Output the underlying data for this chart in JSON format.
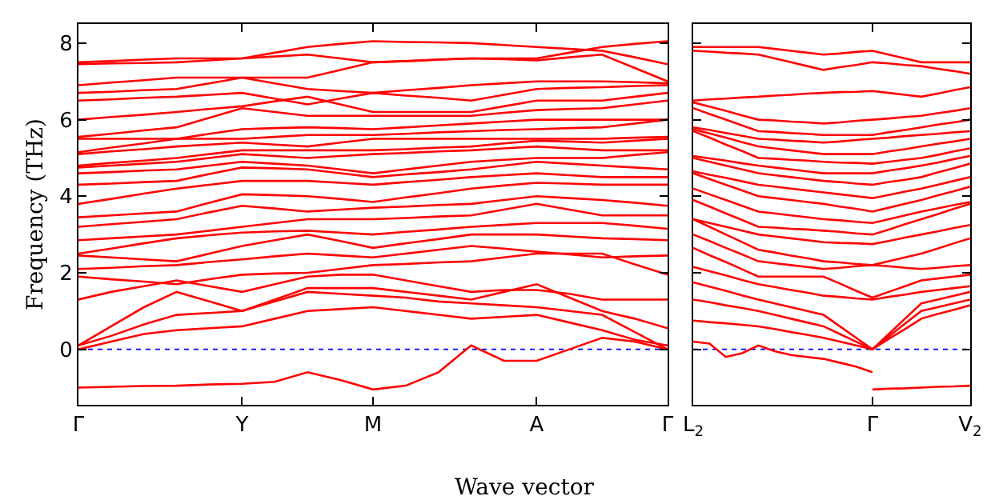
{
  "chart_data": [
    {
      "type": "line",
      "ylabel": "Frequency (THz)",
      "xlabel": "Wave vector",
      "categories": [
        "Γ",
        null,
        null,
        null,
        null,
        "Y",
        null,
        null,
        null,
        "M",
        null,
        null,
        null,
        null,
        "A",
        null,
        null,
        null,
        "Γ"
      ],
      "ylim": [
        -1.45,
        8.5
      ],
      "yticks": [
        0,
        2,
        4,
        6,
        8
      ],
      "grid": false,
      "marker": "none",
      "line_style": "solid",
      "ref_lines": [
        {
          "axis": "y",
          "value": 0,
          "color": "#0000ff",
          "line_style": "dotted"
        }
      ],
      "series": [
        {
          "color": "#ff0000",
          "values": [
            -1.0,
            -0.98,
            -0.96,
            -0.95,
            -0.92,
            -0.9,
            -0.85,
            -0.6,
            -0.8,
            -1.05,
            -0.95,
            -0.6,
            0.1,
            -0.3,
            -0.3,
            0.0,
            0.3,
            0.2,
            0.0
          ]
        },
        {
          "color": "#ff0000",
          "values": [
            0,
            0.2,
            0.4,
            0.5,
            0.55,
            0.6,
            0.8,
            1.0,
            1.05,
            1.1,
            1.0,
            0.9,
            0.8,
            0.85,
            0.9,
            0.7,
            0.5,
            0.25,
            0.1
          ]
        },
        {
          "color": "#ff0000",
          "values": [
            0.1,
            0.35,
            0.65,
            0.9,
            0.95,
            1.0,
            1.25,
            1.5,
            1.45,
            1.4,
            1.35,
            1.25,
            1.2,
            1.15,
            1.1,
            1.0,
            0.9,
            0.45,
            0
          ]
        },
        {
          "color": "#ff0000",
          "values": [
            0.1,
            0.6,
            1.1,
            1.5,
            1.25,
            1.0,
            1.3,
            1.6,
            1.6,
            1.6,
            1.5,
            1.4,
            1.3,
            1.5,
            1.7,
            1.35,
            1.0,
            0.8,
            0.55
          ]
        },
        {
          "color": "#ff0000",
          "values": [
            1.3,
            1.5,
            1.65,
            1.8,
            1.65,
            1.5,
            1.7,
            1.9,
            1.95,
            1.95,
            1.8,
            1.65,
            1.5,
            1.55,
            1.55,
            1.45,
            1.3,
            1.3,
            1.3
          ]
        },
        {
          "color": "#ff0000",
          "values": [
            1.9,
            1.83,
            1.77,
            1.7,
            1.83,
            1.95,
            1.98,
            2.0,
            2.1,
            2.2,
            2.23,
            2.27,
            2.3,
            2.4,
            2.5,
            2.5,
            2.5,
            2.22,
            1.95
          ]
        },
        {
          "color": "#ff0000",
          "values": [
            2.1,
            2.13,
            2.17,
            2.2,
            2.28,
            2.35,
            2.43,
            2.5,
            2.45,
            2.4,
            2.5,
            2.6,
            2.7,
            2.63,
            2.55,
            2.48,
            2.4,
            2.43,
            2.45
          ]
        },
        {
          "color": "#ff0000",
          "values": [
            2.45,
            2.4,
            2.35,
            2.3,
            2.5,
            2.7,
            2.85,
            3.0,
            2.83,
            2.65,
            2.77,
            2.88,
            3.0,
            3.0,
            3.0,
            2.95,
            2.9,
            2.88,
            2.85
          ]
        },
        {
          "color": "#ff0000",
          "values": [
            2.5,
            2.63,
            2.77,
            2.9,
            2.98,
            3.05,
            3.08,
            3.1,
            3.05,
            3.0,
            3.07,
            3.13,
            3.2,
            3.25,
            3.3,
            3.3,
            3.3,
            3.23,
            3.15
          ]
        },
        {
          "color": "#ff0000",
          "values": [
            2.85,
            2.9,
            2.95,
            3.0,
            3.1,
            3.2,
            3.3,
            3.4,
            3.4,
            3.4,
            3.43,
            3.47,
            3.5,
            3.65,
            3.8,
            3.65,
            3.5,
            3.5,
            3.5
          ]
        },
        {
          "color": "#ff0000",
          "values": [
            3.2,
            3.27,
            3.33,
            3.4,
            3.58,
            3.75,
            3.68,
            3.6,
            3.65,
            3.7,
            3.73,
            3.77,
            3.8,
            3.9,
            4.0,
            3.95,
            3.9,
            3.83,
            3.75
          ]
        },
        {
          "color": "#ff0000",
          "values": [
            3.45,
            3.5,
            3.55,
            3.6,
            3.83,
            4.05,
            4.03,
            4.0,
            3.93,
            3.85,
            3.97,
            4.08,
            4.2,
            4.28,
            4.35,
            4.33,
            4.3,
            4.3,
            4.3
          ]
        },
        {
          "color": "#ff0000",
          "values": [
            3.8,
            3.93,
            4.07,
            4.2,
            4.3,
            4.4,
            4.4,
            4.4,
            4.35,
            4.3,
            4.37,
            4.43,
            4.5,
            4.55,
            4.6,
            4.55,
            4.5,
            4.5,
            4.5
          ]
        },
        {
          "color": "#ff0000",
          "values": [
            4.3,
            4.33,
            4.37,
            4.4,
            4.58,
            4.75,
            4.73,
            4.7,
            4.6,
            4.5,
            4.57,
            4.63,
            4.7,
            4.8,
            4.9,
            4.85,
            4.8,
            4.75,
            4.7
          ]
        },
        {
          "color": "#ff0000",
          "values": [
            4.6,
            4.63,
            4.67,
            4.7,
            4.8,
            4.9,
            4.85,
            4.8,
            4.7,
            4.6,
            4.7,
            4.8,
            4.9,
            4.95,
            5.0,
            5.0,
            5.0,
            5.08,
            5.15
          ]
        },
        {
          "color": "#ff0000",
          "values": [
            4.75,
            4.8,
            4.85,
            4.9,
            5.0,
            5.1,
            5.05,
            5.0,
            5.05,
            5.1,
            5.13,
            5.17,
            5.2,
            5.25,
            5.3,
            5.25,
            5.2,
            5.2,
            5.2
          ]
        },
        {
          "color": "#ff0000",
          "values": [
            4.8,
            4.87,
            4.93,
            5.0,
            5.1,
            5.2,
            5.2,
            5.2,
            5.2,
            5.2,
            5.23,
            5.27,
            5.3,
            5.38,
            5.45,
            5.43,
            5.4,
            5.45,
            5.5
          ]
        },
        {
          "color": "#ff0000",
          "values": [
            5.1,
            5.17,
            5.23,
            5.3,
            5.35,
            5.4,
            5.35,
            5.3,
            5.4,
            5.5,
            5.5,
            5.5,
            5.5,
            5.5,
            5.5,
            5.5,
            5.5,
            5.53,
            5.55
          ]
        },
        {
          "color": "#ff0000",
          "values": [
            5.15,
            5.27,
            5.38,
            5.5,
            5.5,
            5.5,
            5.55,
            5.6,
            5.6,
            5.6,
            5.63,
            5.67,
            5.7,
            5.73,
            5.75,
            5.78,
            5.8,
            5.9,
            6.0
          ]
        },
        {
          "color": "#ff0000",
          "values": [
            5.5,
            5.5,
            5.5,
            5.5,
            5.63,
            5.75,
            5.78,
            5.8,
            5.78,
            5.75,
            5.8,
            5.85,
            5.9,
            5.95,
            6.0,
            6.0,
            6.0,
            6.0,
            6.0
          ]
        },
        {
          "color": "#ff0000",
          "values": [
            5.55,
            5.63,
            5.72,
            5.8,
            6.05,
            6.3,
            6.2,
            6.1,
            6.1,
            6.1,
            6.1,
            6.1,
            6.1,
            6.18,
            6.25,
            6.28,
            6.3,
            6.4,
            6.5
          ]
        },
        {
          "color": "#ff0000",
          "values": [
            6.0,
            6.07,
            6.13,
            6.2,
            6.28,
            6.35,
            6.48,
            6.6,
            6.4,
            6.2,
            6.2,
            6.2,
            6.2,
            6.35,
            6.5,
            6.5,
            6.5,
            6.6,
            6.7
          ]
        },
        {
          "color": "#ff0000",
          "values": [
            6.5,
            6.53,
            6.57,
            6.6,
            6.65,
            6.7,
            6.55,
            6.4,
            6.55,
            6.7,
            6.63,
            6.57,
            6.5,
            6.65,
            6.8,
            6.83,
            6.85,
            6.88,
            6.9
          ]
        },
        {
          "color": "#ff0000",
          "values": [
            6.7,
            6.73,
            6.77,
            6.8,
            6.95,
            7.1,
            6.95,
            6.8,
            6.75,
            6.7,
            6.77,
            6.83,
            6.9,
            6.95,
            7.0,
            7.0,
            7.0,
            6.98,
            6.95
          ]
        },
        {
          "color": "#ff0000",
          "values": [
            6.9,
            6.97,
            7.03,
            7.1,
            7.1,
            7.1,
            7.1,
            7.1,
            7.3,
            7.5,
            7.53,
            7.57,
            7.6,
            7.58,
            7.55,
            7.63,
            7.7,
            7.35,
            7.0
          ]
        },
        {
          "color": "#ff0000",
          "values": [
            7.45,
            7.47,
            7.48,
            7.5,
            7.55,
            7.6,
            7.75,
            7.9,
            7.98,
            8.05,
            8.03,
            8.02,
            8.0,
            7.95,
            7.9,
            7.85,
            7.8,
            7.63,
            7.45
          ]
        },
        {
          "color": "#ff0000",
          "values": [
            7.5,
            7.53,
            7.57,
            7.6,
            7.6,
            7.6,
            7.65,
            7.7,
            7.6,
            7.5,
            7.53,
            7.57,
            7.6,
            7.6,
            7.6,
            7.75,
            7.9,
            7.98,
            8.05
          ]
        }
      ]
    },
    {
      "type": "line",
      "tick_labels": "x",
      "categories": [
        "L$_{2}$",
        null,
        null,
        null,
        null,
        null,
        null,
        null,
        null,
        null,
        null,
        "Γ",
        null,
        null,
        null,
        null,
        null,
        "V$_{2}$"
      ],
      "ylim": [
        -1.45,
        8.5
      ],
      "yticks": [
        0,
        2,
        4,
        6,
        8
      ],
      "grid": false,
      "marker": "none",
      "line_style": "solid",
      "ref_lines": [
        {
          "axis": "y",
          "value": 0,
          "color": "#0000ff",
          "line_style": "dotted"
        }
      ],
      "series": [
        {
          "color": "#ff0000",
          "values": [
            0.2,
            0.15,
            -0.2,
            -0.1,
            0.1,
            -0.05,
            -0.15,
            -0.2,
            -0.25,
            -0.35,
            -0.45,
            -0.6,
            null,
            null,
            null,
            null,
            null,
            null
          ]
        },
        {
          "color": "#ff0000",
          "values": [
            null,
            null,
            null,
            null,
            null,
            null,
            null,
            null,
            null,
            null,
            null,
            -1.05,
            -1.03,
            -1.02,
            -1.0,
            -0.98,
            -0.97,
            -0.95
          ]
        },
        {
          "color": "#ff0000",
          "values": [
            0.75,
            0.71,
            0.68,
            0.64,
            0.6,
            0.53,
            0.45,
            0.38,
            0.3,
            0.2,
            0.1,
            0,
            0.27,
            0.53,
            0.8,
            0.92,
            1.03,
            1.15
          ]
        },
        {
          "color": "#ff0000",
          "values": [
            1.3,
            1.23,
            1.15,
            1.08,
            1.0,
            0.9,
            0.8,
            0.7,
            0.6,
            0.4,
            0.2,
            0,
            0.33,
            0.67,
            1.0,
            1.1,
            1.2,
            1.3
          ]
        },
        {
          "color": "#ff0000",
          "values": [
            1.75,
            1.64,
            1.53,
            1.41,
            1.3,
            1.2,
            1.1,
            1.0,
            0.9,
            0.6,
            0.3,
            0,
            0.4,
            0.8,
            1.2,
            1.3,
            1.4,
            1.5
          ]
        },
        {
          "color": "#ff0000",
          "values": [
            2.15,
            2.04,
            1.93,
            1.81,
            1.7,
            1.63,
            1.55,
            1.48,
            1.4,
            1.37,
            1.33,
            1.3,
            1.37,
            1.43,
            1.5,
            1.55,
            1.6,
            1.65
          ]
        },
        {
          "color": "#ff0000",
          "values": [
            2.65,
            2.46,
            2.28,
            2.09,
            1.9,
            1.9,
            1.9,
            1.9,
            1.9,
            1.72,
            1.53,
            1.35,
            1.5,
            1.65,
            1.8,
            1.85,
            1.9,
            1.95
          ]
        },
        {
          "color": "#ff0000",
          "values": [
            3.0,
            2.83,
            2.65,
            2.48,
            2.3,
            2.25,
            2.2,
            2.15,
            2.1,
            2.13,
            2.17,
            2.2,
            2.17,
            2.13,
            2.1,
            2.13,
            2.17,
            2.2
          ]
        },
        {
          "color": "#ff0000",
          "values": [
            3.4,
            3.2,
            3.0,
            2.8,
            2.6,
            2.53,
            2.45,
            2.38,
            2.3,
            2.27,
            2.23,
            2.2,
            2.3,
            2.4,
            2.5,
            2.63,
            2.77,
            2.9
          ]
        },
        {
          "color": "#ff0000",
          "values": [
            3.4,
            3.3,
            3.2,
            3.1,
            3.0,
            2.95,
            2.9,
            2.85,
            2.8,
            2.78,
            2.77,
            2.75,
            2.83,
            2.92,
            3.0,
            3.08,
            3.17,
            3.25
          ]
        },
        {
          "color": "#ff0000",
          "values": [
            3.9,
            3.73,
            3.55,
            3.38,
            3.2,
            3.18,
            3.15,
            3.13,
            3.1,
            3.07,
            3.03,
            3.0,
            3.13,
            3.27,
            3.4,
            3.53,
            3.67,
            3.8
          ]
        },
        {
          "color": "#ff0000",
          "values": [
            4.2,
            4.05,
            3.9,
            3.75,
            3.6,
            3.55,
            3.5,
            3.45,
            3.4,
            3.37,
            3.33,
            3.3,
            3.4,
            3.5,
            3.6,
            3.68,
            3.77,
            3.85
          ]
        },
        {
          "color": "#ff0000",
          "values": [
            4.6,
            4.45,
            4.3,
            4.15,
            4.0,
            3.95,
            3.9,
            3.85,
            3.8,
            3.73,
            3.67,
            3.6,
            3.7,
            3.8,
            3.9,
            4.02,
            4.13,
            4.25
          ]
        },
        {
          "color": "#ff0000",
          "values": [
            4.65,
            4.56,
            4.48,
            4.39,
            4.3,
            4.25,
            4.2,
            4.15,
            4.1,
            4.05,
            4.0,
            3.95,
            4.03,
            4.12,
            4.2,
            4.3,
            4.4,
            4.5
          ]
        },
        {
          "color": "#ff0000",
          "values": [
            5.0,
            4.9,
            4.8,
            4.7,
            4.6,
            4.55,
            4.5,
            4.45,
            4.4,
            4.37,
            4.33,
            4.3,
            4.37,
            4.43,
            4.5,
            4.62,
            4.73,
            4.85
          ]
        },
        {
          "color": "#ff0000",
          "values": [
            5.05,
            4.99,
            4.93,
            4.86,
            4.8,
            4.75,
            4.7,
            4.65,
            4.6,
            4.6,
            4.6,
            4.6,
            4.67,
            4.73,
            4.8,
            4.88,
            4.97,
            5.05
          ]
        },
        {
          "color": "#ff0000",
          "values": [
            5.7,
            5.53,
            5.35,
            5.18,
            5.0,
            4.98,
            4.95,
            4.93,
            4.9,
            4.88,
            4.87,
            4.85,
            4.9,
            4.95,
            5.0,
            5.08,
            5.17,
            5.25
          ]
        },
        {
          "color": "#ff0000",
          "values": [
            5.75,
            5.64,
            5.53,
            5.41,
            5.3,
            5.25,
            5.2,
            5.15,
            5.1,
            5.1,
            5.1,
            5.1,
            5.17,
            5.23,
            5.3,
            5.37,
            5.43,
            5.5
          ]
        },
        {
          "color": "#ff0000",
          "values": [
            5.8,
            5.73,
            5.65,
            5.58,
            5.5,
            5.48,
            5.45,
            5.43,
            5.4,
            5.43,
            5.47,
            5.5,
            5.53,
            5.57,
            5.6,
            5.63,
            5.67,
            5.7
          ]
        },
        {
          "color": "#ff0000",
          "values": [
            6.3,
            6.15,
            6.0,
            5.85,
            5.7,
            5.68,
            5.65,
            5.63,
            5.6,
            5.6,
            5.6,
            5.6,
            5.67,
            5.73,
            5.8,
            5.87,
            5.93,
            6.0
          ]
        },
        {
          "color": "#ff0000",
          "values": [
            6.45,
            6.34,
            6.23,
            6.11,
            6.0,
            5.98,
            5.95,
            5.93,
            5.9,
            5.93,
            5.97,
            6.0,
            6.03,
            6.07,
            6.1,
            6.17,
            6.23,
            6.3
          ]
        },
        {
          "color": "#ff0000",
          "values": [
            6.5,
            6.53,
            6.55,
            6.58,
            6.6,
            6.63,
            6.65,
            6.68,
            6.7,
            6.72,
            6.73,
            6.75,
            6.7,
            6.65,
            6.6,
            6.68,
            6.77,
            6.85
          ]
        },
        {
          "color": "#ff0000",
          "values": [
            7.8,
            7.78,
            7.75,
            7.73,
            7.7,
            7.6,
            7.5,
            7.4,
            7.3,
            7.37,
            7.43,
            7.5,
            7.47,
            7.43,
            7.4,
            7.33,
            7.27,
            7.2
          ]
        },
        {
          "color": "#ff0000",
          "values": [
            7.9,
            7.9,
            7.9,
            7.9,
            7.9,
            7.85,
            7.8,
            7.75,
            7.7,
            7.73,
            7.77,
            7.8,
            7.7,
            7.6,
            7.5,
            7.5,
            7.5,
            7.5
          ]
        }
      ]
    }
  ]
}
